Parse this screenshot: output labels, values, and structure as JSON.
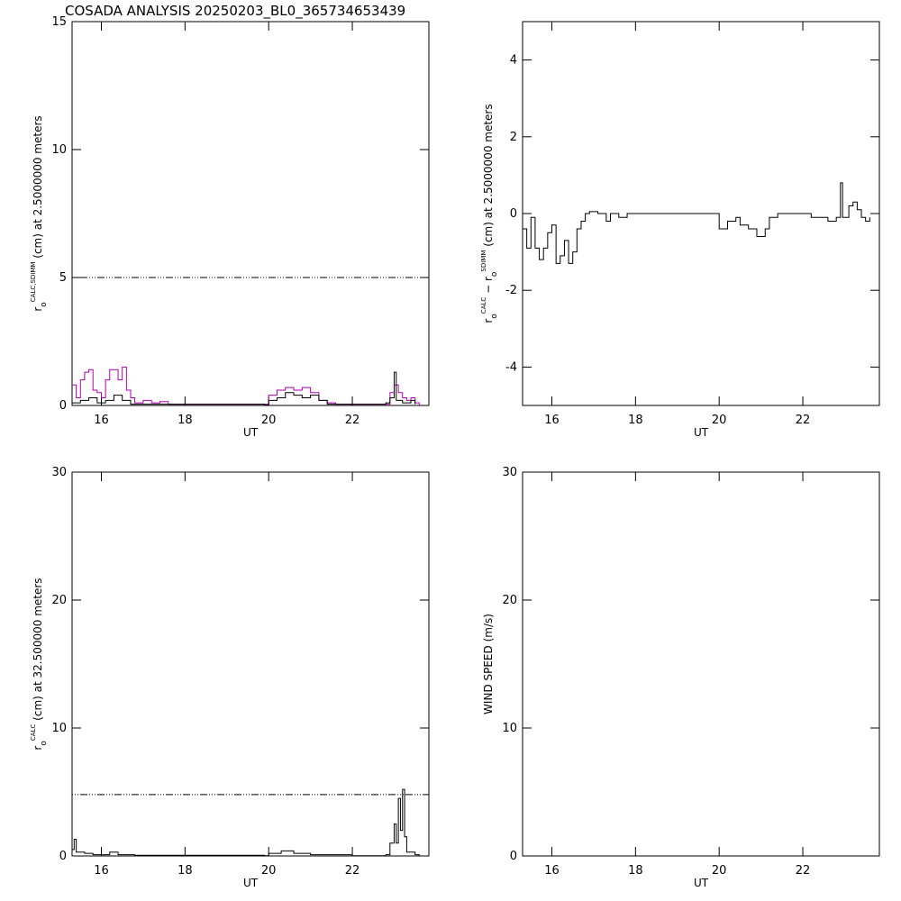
{
  "chart_data": [
    {
      "type": "line",
      "title": "COSADA ANALYSIS 20250203_BL0_365734653439",
      "xlabel": "UT",
      "ylabel": [
        {
          "text": "r"
        },
        {
          "text": "o",
          "pos": "sub"
        },
        {
          "text": "CALC,SDIMM",
          "pos": "sup"
        },
        {
          "text": " (cm)  at  2.5000000 meters"
        }
      ],
      "xlim": [
        15.3,
        23.83
      ],
      "xticks": [
        16,
        18,
        20,
        22
      ],
      "ylim": [
        0,
        15
      ],
      "yticks": [
        0,
        5,
        10,
        15
      ],
      "hline": 5,
      "step": true,
      "series": [
        {
          "color": "#b000b0",
          "x": [
            15.3,
            15.4,
            15.5,
            15.6,
            15.7,
            15.8,
            15.9,
            16.0,
            16.1,
            16.2,
            16.3,
            16.4,
            16.5,
            16.6,
            16.7,
            16.8,
            17.0,
            17.2,
            17.4,
            17.6,
            18.0,
            19.9,
            20.0,
            20.2,
            20.4,
            20.6,
            20.8,
            21.0,
            21.2,
            21.4,
            21.6,
            22.8,
            22.9,
            23.0,
            23.1,
            23.2,
            23.3,
            23.4,
            23.5,
            23.6
          ],
          "values": [
            0.8,
            0.3,
            1.0,
            1.3,
            1.4,
            0.6,
            0.5,
            0.3,
            1.0,
            1.4,
            1.4,
            1.0,
            1.5,
            0.6,
            0.3,
            0.1,
            0.2,
            0.1,
            0.15,
            0.05,
            0.05,
            0.05,
            0.4,
            0.6,
            0.7,
            0.6,
            0.7,
            0.5,
            0.2,
            0.1,
            0.05,
            0.05,
            0.5,
            0.8,
            0.5,
            0.3,
            0.2,
            0.3,
            0.1,
            0
          ]
        },
        {
          "color": "#000000",
          "x": [
            15.3,
            15.5,
            15.7,
            15.9,
            16.1,
            16.3,
            16.5,
            16.7,
            17.0,
            19.9,
            20.0,
            20.2,
            20.4,
            20.6,
            20.8,
            21.0,
            21.2,
            21.4,
            22.8,
            22.9,
            23.0,
            23.05,
            23.2,
            23.4,
            23.5
          ],
          "values": [
            0.1,
            0.2,
            0.3,
            0.1,
            0.2,
            0.4,
            0.2,
            0.05,
            0.05,
            0.02,
            0.2,
            0.3,
            0.5,
            0.4,
            0.3,
            0.4,
            0.2,
            0.05,
            0.1,
            0.3,
            1.3,
            0.2,
            0.1,
            0.2,
            0.05
          ]
        }
      ]
    },
    {
      "type": "line",
      "xlabel": "UT",
      "ylabel": [
        {
          "text": "r"
        },
        {
          "text": "o",
          "pos": "sub"
        },
        {
          "text": "CALC",
          "pos": "sup"
        },
        {
          "text": "  − r"
        },
        {
          "text": "o",
          "pos": "sub"
        },
        {
          "text": "SDIMM",
          "pos": "sup"
        },
        {
          "text": " (cm) at 2.5000000 meters"
        }
      ],
      "xlim": [
        15.3,
        23.83
      ],
      "xticks": [
        16,
        18,
        20,
        22
      ],
      "ylim": [
        -5,
        5
      ],
      "yticks": [
        -4,
        -2,
        0,
        2,
        4
      ],
      "step": true,
      "series": [
        {
          "color": "#000000",
          "x": [
            15.3,
            15.4,
            15.5,
            15.6,
            15.7,
            15.8,
            15.9,
            16.0,
            16.1,
            16.2,
            16.3,
            16.4,
            16.5,
            16.6,
            16.7,
            16.8,
            16.9,
            17.1,
            17.3,
            17.4,
            17.6,
            17.8,
            19.9,
            20.0,
            20.1,
            20.2,
            20.4,
            20.5,
            20.7,
            20.9,
            21.1,
            21.2,
            21.4,
            22.2,
            22.6,
            22.8,
            22.9,
            22.95,
            23.1,
            23.2,
            23.3,
            23.4,
            23.5,
            23.6
          ],
          "values": [
            -0.4,
            -0.9,
            -0.1,
            -0.9,
            -1.2,
            -0.9,
            -0.5,
            -0.3,
            -1.3,
            -1.1,
            -0.7,
            -1.3,
            -1.0,
            -0.4,
            -0.2,
            0.0,
            0.05,
            0.0,
            -0.2,
            0.0,
            -0.1,
            0.0,
            0.0,
            -0.4,
            -0.4,
            -0.2,
            -0.1,
            -0.3,
            -0.4,
            -0.6,
            -0.4,
            -0.1,
            0.0,
            -0.1,
            -0.2,
            -0.1,
            0.8,
            -0.1,
            0.2,
            0.3,
            0.1,
            -0.1,
            -0.2,
            -0.1
          ]
        }
      ]
    },
    {
      "type": "line",
      "xlabel": "UT",
      "ylabel": [
        {
          "text": "r"
        },
        {
          "text": "o",
          "pos": "sub"
        },
        {
          "text": "CALC",
          "pos": "sup"
        },
        {
          "text": " (cm) at 32.500000 meters"
        }
      ],
      "xlim": [
        15.3,
        23.83
      ],
      "xticks": [
        16,
        18,
        20,
        22
      ],
      "ylim": [
        0,
        30
      ],
      "yticks": [
        0,
        10,
        20,
        30
      ],
      "hline": 4.8,
      "step": true,
      "series": [
        {
          "color": "#000000",
          "x": [
            15.3,
            15.35,
            15.4,
            15.6,
            15.8,
            16.0,
            16.2,
            16.4,
            16.8,
            19.9,
            20.0,
            20.3,
            20.6,
            21.0,
            22.0,
            22.8,
            22.9,
            23.0,
            23.05,
            23.1,
            23.15,
            23.2,
            23.25,
            23.3,
            23.5,
            23.6
          ],
          "values": [
            0.5,
            1.3,
            0.3,
            0.2,
            0.1,
            0.1,
            0.3,
            0.1,
            0.05,
            0.02,
            0.2,
            0.4,
            0.2,
            0.1,
            0.02,
            0.1,
            1.0,
            2.5,
            1.0,
            4.5,
            2.0,
            5.2,
            1.5,
            0.3,
            0.1,
            0
          ]
        }
      ]
    },
    {
      "type": "line",
      "xlabel": "UT",
      "ylabel": [
        {
          "text": "WIND SPEED (m/s)"
        }
      ],
      "xlim": [
        15.3,
        23.83
      ],
      "xticks": [
        16,
        18,
        20,
        22
      ],
      "ylim": [
        0,
        30
      ],
      "yticks": [
        0,
        10,
        20,
        30
      ],
      "step": true,
      "series": []
    }
  ]
}
